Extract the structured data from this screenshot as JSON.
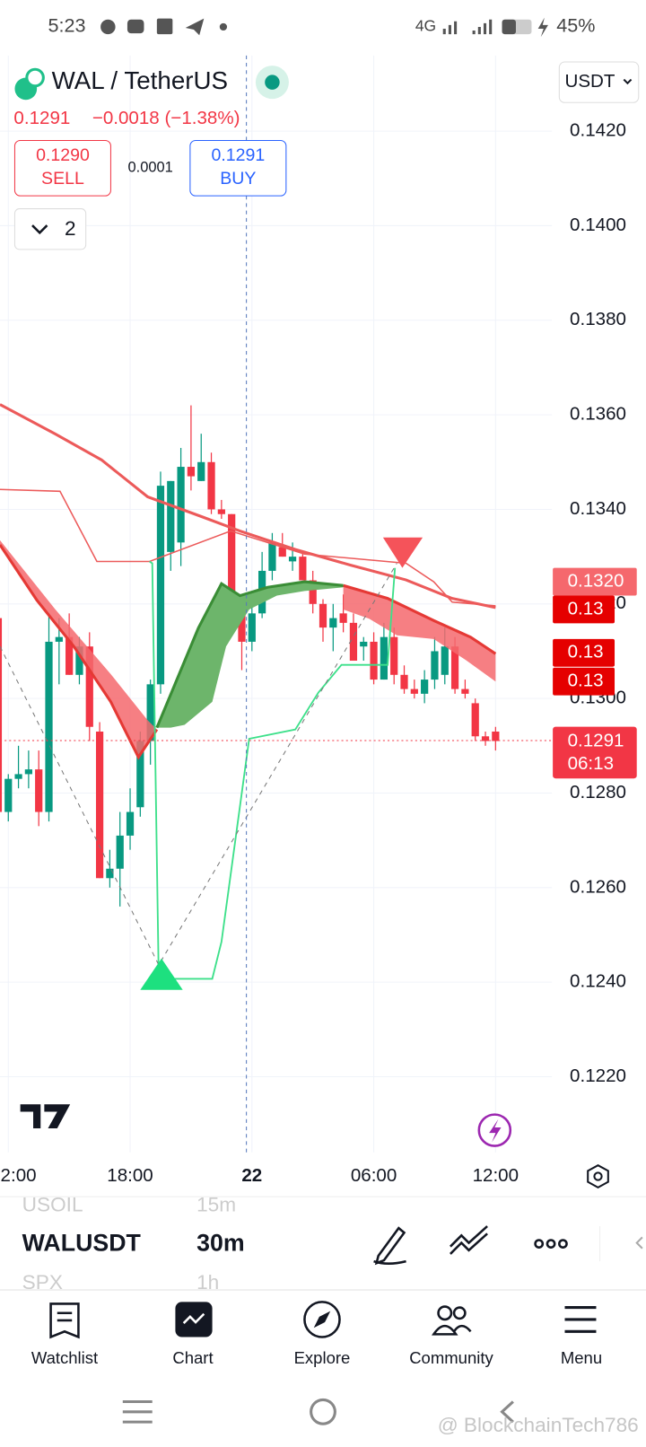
{
  "status_bar": {
    "time": "5:23",
    "network": "4G",
    "battery": "45%"
  },
  "header": {
    "symbol": "WAL / TetherUS",
    "currency": "USDT",
    "price": "0.1291",
    "change": "−0.0018 (−1.38%)",
    "sell_price": "0.1290",
    "sell": "SELL",
    "spread": "0.0001",
    "buy_price": "0.1291",
    "buy": "BUY",
    "indicators": "2"
  },
  "chart_data": {
    "type": "candlestick",
    "categories": [
      null,
      "2:00",
      null,
      null,
      null,
      null,
      null,
      null,
      null,
      null,
      null,
      null,
      null,
      "18:00",
      null,
      null,
      null,
      null,
      null,
      null,
      null,
      null,
      null,
      null,
      null,
      "22",
      null,
      null,
      null,
      null,
      null,
      null,
      null,
      null,
      null,
      null,
      null,
      "06:00",
      null,
      null,
      null,
      null,
      null,
      null,
      null,
      null,
      null,
      null,
      null,
      "12:00"
    ],
    "open": [
      0.1317,
      0.1276,
      0.1283,
      0.1284,
      0.1285,
      0.1276,
      0.1312,
      0.1313,
      0.1305,
      0.1311,
      0.1293,
      0.1262,
      0.1264,
      0.1271,
      0.1277,
      0.1291,
      0.1303,
      0.1331,
      0.1333,
      0.1349,
      0.1346,
      0.135,
      0.134,
      0.1339,
      0.1318,
      0.1312,
      0.1318,
      0.1327,
      0.1332,
      0.1329,
      0.133,
      0.1325,
      0.132,
      0.1315,
      0.1318,
      0.1316,
      0.1311,
      0.1312,
      0.1304,
      0.1313,
      0.1305,
      0.1302,
      0.1301,
      0.1304,
      0.1305,
      0.1311,
      0.1302,
      0.1299,
      0.1292,
      0.1293
    ],
    "high": [
      0.1318,
      0.1284,
      0.129,
      0.1289,
      0.1289,
      0.1318,
      0.1317,
      0.1318,
      0.1313,
      0.1314,
      0.1295,
      0.1268,
      0.1276,
      0.1281,
      0.1293,
      0.1304,
      0.1348,
      0.1346,
      0.1353,
      0.1362,
      0.1356,
      0.1352,
      0.1342,
      0.1339,
      0.132,
      0.1321,
      0.1331,
      0.1335,
      0.1335,
      0.1333,
      0.1331,
      0.1327,
      0.1321,
      0.132,
      0.1322,
      0.1318,
      0.1313,
      0.1314,
      0.1316,
      0.1315,
      0.1307,
      0.1304,
      0.1306,
      0.1313,
      0.1315,
      0.1313,
      0.1304,
      0.13,
      0.1293,
      0.1294
    ],
    "low": [
      0.1272,
      0.1274,
      0.1281,
      0.1281,
      0.1273,
      0.1274,
      0.1303,
      0.1305,
      0.1303,
      0.1291,
      0.1262,
      0.126,
      0.1256,
      0.1268,
      0.1275,
      0.1286,
      0.1301,
      0.1327,
      0.1328,
      0.1344,
      0.1346,
      0.1339,
      0.1338,
      0.1318,
      0.1306,
      0.131,
      0.1317,
      0.1325,
      0.133,
      0.1327,
      0.1325,
      0.1318,
      0.1312,
      0.131,
      0.1314,
      0.1308,
      0.1308,
      0.1303,
      0.1304,
      0.1303,
      0.1301,
      0.13,
      0.1299,
      0.1302,
      0.1303,
      0.1301,
      0.13,
      0.1291,
      0.129,
      0.1289
    ],
    "close": [
      0.1276,
      0.1283,
      0.1284,
      0.1285,
      0.1276,
      0.1312,
      0.1313,
      0.1305,
      0.1311,
      0.1294,
      0.1262,
      0.1264,
      0.1271,
      0.1276,
      0.1291,
      0.1303,
      0.1345,
      0.1346,
      0.1349,
      0.1347,
      0.135,
      0.134,
      0.1339,
      0.1318,
      0.1312,
      0.1318,
      0.1327,
      0.1333,
      0.133,
      0.133,
      0.1325,
      0.132,
      0.1315,
      0.1317,
      0.1316,
      0.1308,
      0.1312,
      0.1304,
      0.1313,
      0.1305,
      0.1302,
      0.1301,
      0.1304,
      0.131,
      0.1311,
      0.1302,
      0.1301,
      0.1292,
      0.1291,
      0.1291
    ],
    "up_color": "#089981",
    "down_color": "#f23645",
    "ylim": [
      0.1204,
      0.1436
    ],
    "yticks": [
      {
        "value": 0.142,
        "label": "0.1420"
      },
      {
        "value": 0.14,
        "label": "0.1400"
      },
      {
        "value": 0.138,
        "label": "0.1380"
      },
      {
        "value": 0.136,
        "label": "0.1360"
      },
      {
        "value": 0.134,
        "label": "0.1340"
      },
      {
        "value": 0.132,
        "label": "0.1320"
      },
      {
        "value": 0.13,
        "label": "0.1300"
      },
      {
        "value": 0.128,
        "label": "0.1280"
      },
      {
        "value": 0.126,
        "label": "0.1260"
      },
      {
        "value": 0.124,
        "label": "0.1240"
      },
      {
        "value": 0.122,
        "label": "0.1220"
      }
    ],
    "grid": true,
    "price_tags": [
      "0.1320",
      "0.13",
      "0.13",
      "0.13"
    ],
    "last_price": "0.1291",
    "countdown": "06:13"
  },
  "toolbar": {
    "symbol": "WALUSDT",
    "interval": "30m",
    "symbol_above": "USOIL",
    "interval_above": "15m",
    "symbol_below": "SPX",
    "interval_below": "1h"
  },
  "nav": [
    "Watchlist",
    "Chart",
    "Explore",
    "Community",
    "Menu"
  ],
  "watermark": "@ BlockchainTech786"
}
